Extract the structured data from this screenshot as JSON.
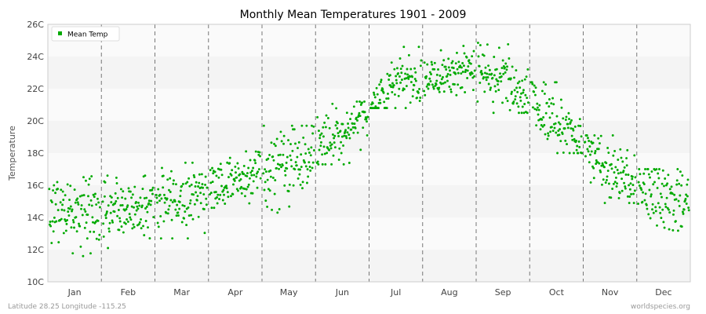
{
  "chart_data": {
    "type": "scatter",
    "title": "Monthly Mean Temperatures 1901 - 2009",
    "ylabel": "Temperature",
    "xlabel": "",
    "y_tick_labels": [
      "10C",
      "12C",
      "14C",
      "16C",
      "18C",
      "20C",
      "22C",
      "24C",
      "26C"
    ],
    "ylim": [
      10,
      26
    ],
    "categories": [
      "Jan",
      "Feb",
      "Mar",
      "Apr",
      "May",
      "Jun",
      "Jul",
      "Aug",
      "Sep",
      "Oct",
      "Nov",
      "Dec"
    ],
    "grid": "alternating horizontal bands; dashed vertical separators between months",
    "legend": {
      "position": "top-left",
      "entries": [
        "Mean Temp"
      ]
    },
    "series": [
      {
        "name": "Mean Temp",
        "color": "#00aa00",
        "years": "1901-2009",
        "monthly_ranges": [
          {
            "month": "Jan",
            "mean": 14.2,
            "min": 11.6,
            "max": 16.8
          },
          {
            "month": "Feb",
            "mean": 14.5,
            "min": 12.1,
            "max": 16.6
          },
          {
            "month": "Mar",
            "mean": 15.2,
            "min": 12.7,
            "max": 17.4
          },
          {
            "month": "Apr",
            "mean": 16.4,
            "min": 14.6,
            "max": 18.4
          },
          {
            "month": "May",
            "mean": 17.4,
            "min": 14.3,
            "max": 19.7
          },
          {
            "month": "Jun",
            "mean": 19.2,
            "min": 17.3,
            "max": 21.2
          },
          {
            "month": "Jul",
            "mean": 22.3,
            "min": 20.8,
            "max": 24.6
          },
          {
            "month": "Aug",
            "mean": 23.1,
            "min": 21.6,
            "max": 24.9
          },
          {
            "month": "Sep",
            "mean": 22.9,
            "min": 20.5,
            "max": 24.9
          },
          {
            "month": "Oct",
            "mean": 19.9,
            "min": 18.0,
            "max": 22.4
          },
          {
            "month": "Nov",
            "mean": 17.0,
            "min": 14.9,
            "max": 19.1
          },
          {
            "month": "Dec",
            "mean": 15.2,
            "min": 12.6,
            "max": 17.0
          }
        ]
      }
    ]
  },
  "footer": {
    "location": "Latitude 28.25 Longitude -115.25",
    "source": "worldspecies.org"
  }
}
